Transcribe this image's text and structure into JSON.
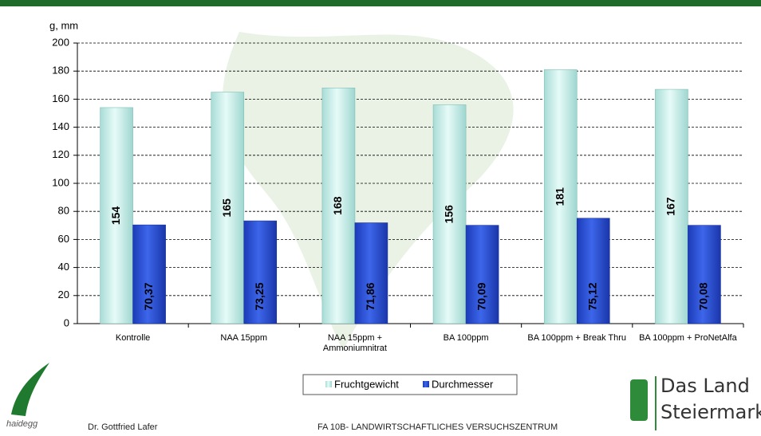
{
  "chart_data": {
    "type": "bar",
    "y_label": "g, mm",
    "categories": [
      "Kontrolle",
      "NAA 15ppm",
      "NAA 15ppm + Ammoniumnitrat",
      "BA 100ppm",
      "BA 100ppm + Break Thru",
      "BA 100ppm + ProNetAlfa"
    ],
    "series": [
      {
        "name": "Fruchtgewicht",
        "color": "#c9efea",
        "values": [
          154,
          165,
          168,
          156,
          181,
          167
        ]
      },
      {
        "name": "Durchmesser",
        "color": "#2b4fd4",
        "values": [
          70.37,
          73.25,
          71.86,
          70.09,
          75.12,
          70.08
        ],
        "value_labels": [
          "70,37",
          "73,25",
          "71,86",
          "70,09",
          "75,12",
          "70,08"
        ]
      }
    ],
    "ylim": [
      0,
      200
    ],
    "yticks": [
      0,
      20,
      40,
      60,
      80,
      100,
      120,
      140,
      160,
      180,
      200
    ],
    "grid": true,
    "legend": "bottom"
  },
  "footer": {
    "author": "Dr. Gottfried Lafer",
    "institute": "FA 10B- LANDWIRTSCHAFTLICHES VERSUCHSZENTRUM",
    "logo_left": "haidegg",
    "logo_right": [
      "Das Land",
      "Steiermark"
    ]
  }
}
